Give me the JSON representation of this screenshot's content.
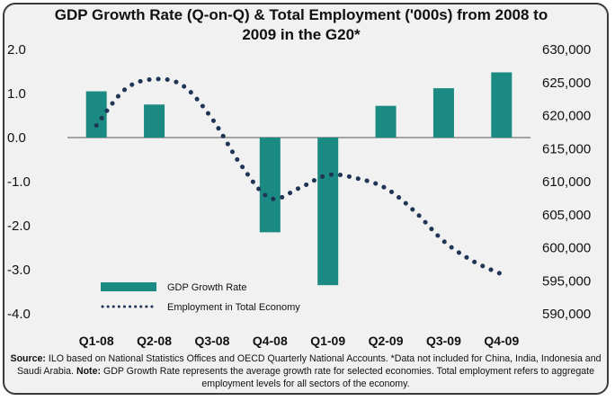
{
  "chart_data": {
    "type": "bar+line",
    "title": "GDP Growth Rate (Q-on-Q) & Total Employment ('000s) from 2008 to 2009 in the G20*",
    "categories": [
      "Q1-08",
      "Q2-08",
      "Q3-08",
      "Q4-08",
      "Q1-09",
      "Q2-09",
      "Q3-09",
      "Q4-09"
    ],
    "left_axis": {
      "ylim": [
        -4.0,
        2.0
      ],
      "ticks": [
        "2.0",
        "1.0",
        "0.0",
        "-1.0",
        "-2.0",
        "-3.0",
        "-4.0"
      ],
      "tick_values": [
        2,
        1,
        0,
        -1,
        -2,
        -3,
        -4
      ]
    },
    "right_axis": {
      "ylim": [
        590000,
        630000
      ],
      "ticks": [
        "630,000",
        "625,000",
        "620,000",
        "615,000",
        "610,000",
        "605,000",
        "600,000",
        "595,000",
        "590,000"
      ],
      "tick_values": [
        630000,
        625000,
        620000,
        615000,
        610000,
        605000,
        600000,
        595000,
        590000
      ]
    },
    "series": [
      {
        "name": "GDP Growth Rate",
        "type": "bar",
        "axis": "left",
        "color": "#1a8a82",
        "values": [
          1.05,
          0.75,
          null,
          -2.15,
          -3.35,
          0.72,
          1.12,
          1.48
        ]
      },
      {
        "name": "Employment in Total Economy",
        "type": "line-dotted",
        "axis": "right",
        "color": "#1f3556",
        "x": [
          0,
          0.5,
          1,
          1.5,
          2,
          2.5,
          3,
          3.5,
          4,
          4.5,
          5,
          5.5,
          6,
          6.5,
          7
        ],
        "values": [
          618500,
          624000,
          625500,
          624500,
          619500,
          612500,
          607500,
          609000,
          611000,
          610500,
          609000,
          605500,
          601000,
          598000,
          596000
        ]
      }
    ],
    "legend_position": "bottom-left"
  },
  "footnote": {
    "source_label": "Source:",
    "source_text": " ILO based on National Statistics Offices and OECD Quarterly National Accounts. *Data not included for China, India, Indonesia and Saudi Arabia. ",
    "note_label": "Note:",
    "note_text": " GDP Growth Rate represents the average growth rate for selected economies. Total employment refers to aggregate employment levels for all sectors of the economy."
  }
}
